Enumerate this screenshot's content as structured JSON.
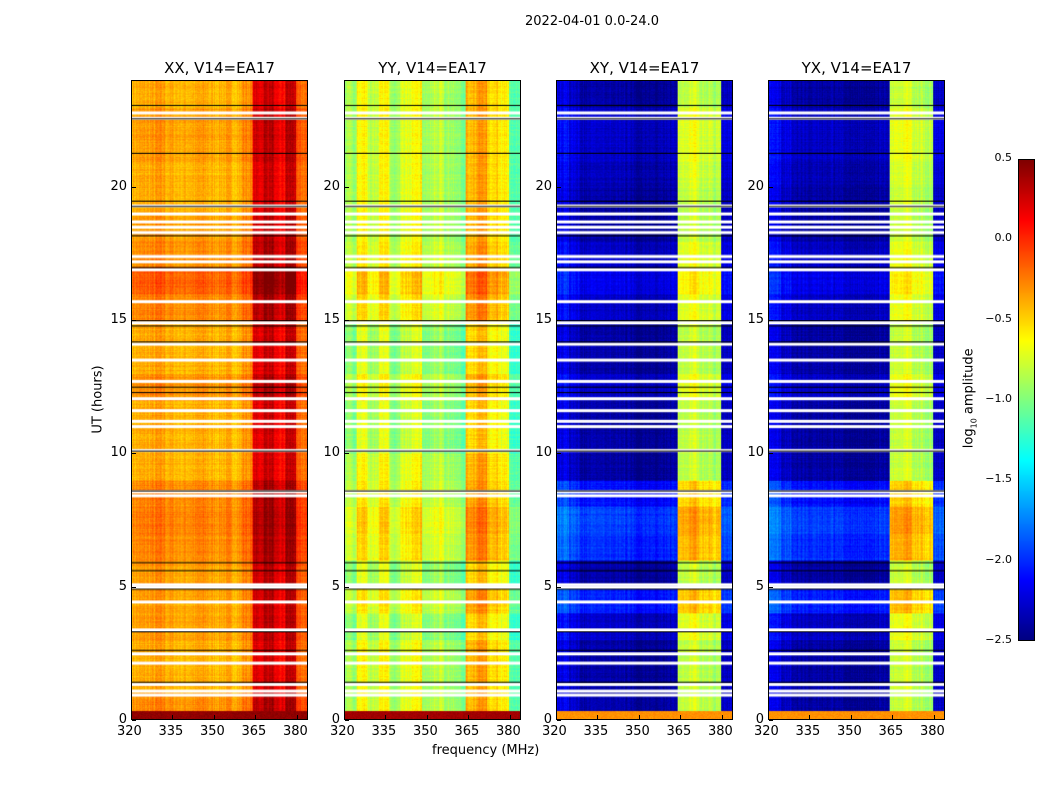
{
  "chart_data": {
    "type": "heatmap",
    "title": "2022-04-01 0.0-24.0",
    "xlabel": "frequency (MHz)",
    "ylabel": "UT (hours)",
    "xlim": [
      320,
      384
    ],
    "ylim": [
      0,
      24
    ],
    "xticks": [
      "320",
      "335",
      "350",
      "365",
      "380"
    ],
    "xtick_values": [
      320,
      335,
      350,
      365,
      380
    ],
    "yticks": [
      "0",
      "5",
      "10",
      "15",
      "20"
    ],
    "ytick_values": [
      0,
      5,
      10,
      15,
      20
    ],
    "colorbar": {
      "label": "log10 amplitude",
      "label_main": "log",
      "label_sub": "10",
      "label_rest": " amplitude",
      "colormap": "jet",
      "range": [
        -2.5,
        0.5
      ],
      "ticks": [
        "0.5",
        "0.0",
        "−0.5",
        "−1.0",
        "−1.5",
        "−2.0",
        "−2.5"
      ],
      "tick_values": [
        0.5,
        0.0,
        -0.5,
        -1.0,
        -1.5,
        -2.0,
        -2.5
      ]
    },
    "model_note": "approximate log10 amplitude = freq_profile[4 MHz bin] + time_profile[1 h bin]",
    "panels": [
      {
        "title": "XX, V14=EA17",
        "freq_profile": [
          -0.4,
          -0.38,
          -0.35,
          -0.4,
          -0.42,
          -0.4,
          -0.38,
          -0.42,
          -0.4,
          -0.42,
          -0.3,
          0.2,
          0.3,
          0.1,
          0.3,
          -0.2
        ],
        "time_profile": [
          0.1,
          0,
          0,
          0.05,
          0.05,
          0.05,
          0.12,
          0.15,
          0.12,
          0,
          0,
          0,
          0.1,
          0,
          0,
          0.12,
          0.25,
          0.1,
          0.05,
          0,
          0,
          0.05,
          0.05,
          0
        ],
        "bottom_strip": 0.45
      },
      {
        "title": "YY, V14=EA17",
        "freq_profile": [
          -0.9,
          -0.6,
          -0.8,
          -0.6,
          -0.9,
          -0.7,
          -0.6,
          -0.9,
          -0.8,
          -0.9,
          -1.0,
          -0.4,
          -0.3,
          -0.5,
          -0.6,
          -1.1
        ],
        "time_profile": [
          0,
          0,
          0,
          -0.1,
          0.05,
          -0.1,
          0.1,
          0.15,
          0.05,
          0,
          -0.1,
          -0.1,
          0,
          -0.1,
          -0.1,
          0.1,
          0.2,
          0.05,
          0,
          0,
          0,
          0,
          0,
          0
        ],
        "bottom_strip": 0.4
      },
      {
        "title": "XY, V14=EA17",
        "freq_profile": [
          -2.2,
          -2.3,
          -2.4,
          -2.4,
          -2.4,
          -2.4,
          -2.4,
          -2.45,
          -2.45,
          -2.45,
          -2.4,
          -0.8,
          -0.75,
          -0.85,
          -0.9,
          -2.3
        ],
        "time_profile": [
          0,
          0,
          0,
          0.1,
          0.35,
          0,
          0.4,
          0.45,
          0.3,
          0,
          0,
          0,
          0.1,
          0,
          0,
          0.1,
          0.2,
          0.1,
          0,
          0,
          0.05,
          0.1,
          0.1,
          0
        ],
        "bottom_strip": -0.3
      },
      {
        "title": "YX, V14=EA17",
        "freq_profile": [
          -2.2,
          -2.3,
          -2.4,
          -2.4,
          -2.4,
          -2.4,
          -2.4,
          -2.45,
          -2.45,
          -2.45,
          -2.4,
          -0.8,
          -0.75,
          -0.85,
          -0.9,
          -2.3
        ],
        "time_profile": [
          0,
          0,
          0,
          0.1,
          0.35,
          0,
          0.4,
          0.45,
          0.3,
          0,
          0,
          0,
          0.1,
          0,
          0,
          0.1,
          0.2,
          0.1,
          0,
          0,
          0.05,
          0.1,
          0.1,
          0
        ],
        "bottom_strip": -0.3
      }
    ],
    "flagged_hours_white": [
      0.9,
      1.05,
      1.3,
      2.1,
      2.45,
      3.35,
      4.4,
      4.95,
      5.05,
      8.4,
      8.55,
      10.1,
      11.0,
      11.2,
      11.6,
      12.05,
      12.7,
      13.5,
      14.1,
      14.9,
      15.7,
      16.9,
      17.2,
      17.4,
      18.3,
      18.5,
      18.7,
      19.0,
      19.3,
      22.6,
      22.8
    ],
    "flagged_hours_black": [
      1.4,
      2.6,
      3.3,
      4.9,
      5.6,
      5.9,
      8.6,
      10.1,
      12.3,
      12.5,
      14.2,
      14.8,
      15.0,
      17.0,
      18.2,
      19.3,
      19.5,
      21.3,
      22.6,
      23.1
    ]
  }
}
